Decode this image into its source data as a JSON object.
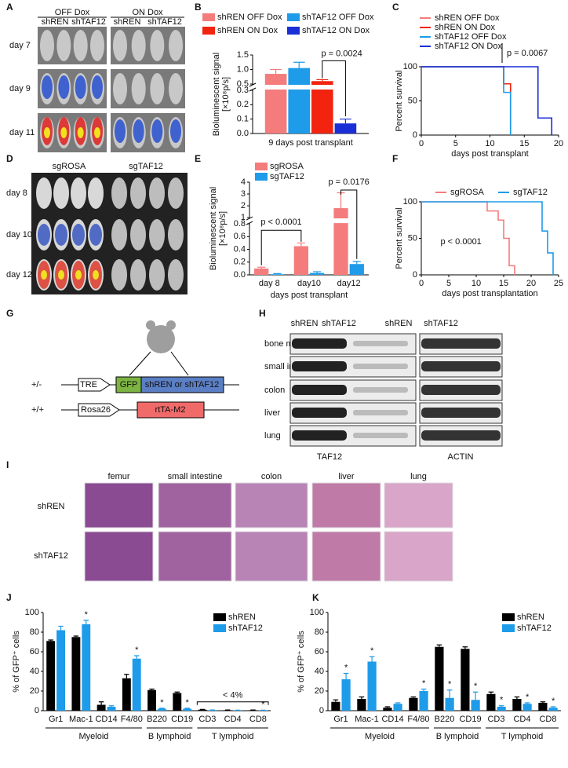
{
  "panel_labels": [
    "A",
    "B",
    "C",
    "D",
    "E",
    "F",
    "G",
    "H",
    "I",
    "J",
    "K"
  ],
  "panel_a": {
    "groups": [
      "OFF Dox",
      "ON Dox"
    ],
    "columns": [
      "shREN",
      "shTAF12",
      "shREN",
      "shTAF12"
    ],
    "rows": [
      "day 7",
      "day 9",
      "day 11"
    ]
  },
  "panel_d": {
    "columns": [
      "sgROSA",
      "sgTAF12"
    ],
    "rows": [
      "day 8",
      "day 10",
      "day 12"
    ]
  },
  "panel_g": {
    "rows": [
      {
        "genotype": "+/-",
        "promoter": "TRE",
        "reporter": "GFP",
        "cassette": "shREN or shTAF12"
      },
      {
        "genotype": "+/+",
        "promoter": "Rosa26",
        "cassette": "rtTA-M2"
      }
    ]
  },
  "panel_h": {
    "columns": [
      "shREN",
      "shTAF12",
      "shREN",
      "shTAF12"
    ],
    "rows": [
      "bone marrow",
      "small intestine",
      "colon",
      "liver",
      "lung"
    ],
    "blots": [
      "TAF12",
      "ACTIN"
    ]
  },
  "panel_i": {
    "columns": [
      "femur",
      "small intestine",
      "colon",
      "liver",
      "lung"
    ],
    "rows": [
      "shREN",
      "shTAF12"
    ]
  },
  "chart_data": [
    {
      "type": "bar",
      "ylabel": [
        "Bioluminescent signal",
        "[×10⁸p/s]"
      ],
      "xlabel": "9 days post transplant",
      "categories": [
        null
      ],
      "series": [
        {
          "name": "shREN OFF Dox",
          "color": "#f47c7c",
          "values": [
            0.85
          ],
          "errors": [
            0.15
          ]
        },
        {
          "name": "shTAF12 OFF Dox",
          "color": "#1e9be9",
          "values": [
            1.05
          ],
          "errors": [
            0.2
          ]
        },
        {
          "name": "shREN ON Dox",
          "color": "#f2230f",
          "values": [
            0.6
          ],
          "errors": [
            0.05
          ]
        },
        {
          "name": "shTAF12 ON Dox",
          "color": "#1b2fd6",
          "values": [
            0.07
          ],
          "errors": [
            0.03
          ]
        }
      ],
      "ylim": [
        0,
        1.5
      ],
      "ybreak": [
        0.3,
        0.5
      ],
      "yticks": [
        {
          "value": 0,
          "label": "0.0"
        },
        0.1,
        0.2,
        0.3,
        0.5,
        {
          "value": 1,
          "label": "1.0"
        },
        1.5
      ],
      "annotations": [
        "p = 0.0024"
      ],
      "legend": "top"
    },
    {
      "type": "line",
      "ylabel": [
        "Percent survival"
      ],
      "xlabel": "days post transplant",
      "xlim": [
        0,
        20
      ],
      "xticks": [
        0,
        5,
        10,
        15,
        20
      ],
      "ylim": [
        0,
        100
      ],
      "yticks": [
        0,
        50,
        100
      ],
      "series": [
        {
          "name": "shREN OFF Dox",
          "color": "#f47c7c",
          "x": [
            0,
            12,
            12,
            13,
            13
          ],
          "values": [
            100,
            100,
            75,
            75,
            0
          ]
        },
        {
          "name": "shREN ON Dox",
          "color": "#f2230f",
          "x": [
            0,
            12,
            12,
            13,
            13
          ],
          "values": [
            100,
            100,
            75,
            75,
            0
          ]
        },
        {
          "name": "shTAF12 OFF Dox",
          "color": "#1e9be9",
          "x": [
            0,
            12,
            12,
            13,
            13
          ],
          "values": [
            100,
            100,
            62.5,
            62.5,
            0
          ]
        },
        {
          "name": "shTAF12 ON Dox",
          "color": "#1b2fd6",
          "x": [
            0,
            17,
            17,
            19,
            19
          ],
          "values": [
            100,
            100,
            25,
            25,
            0
          ]
        }
      ],
      "annotations": [
        "p = 0.0067"
      ],
      "legend": "top"
    },
    {
      "type": "bar",
      "ylabel": [
        "Bioluminescent signal",
        "[×10⁸p/s]"
      ],
      "xlabel": "days post transplant",
      "categories": [
        "day 8",
        "day10",
        "day12"
      ],
      "series": [
        {
          "name": "sgROSA",
          "color": "#f47c7c",
          "values": [
            0.1,
            0.45,
            1.8
          ],
          "errors": [
            0.02,
            0.05,
            1.3
          ]
        },
        {
          "name": "sgTAF12",
          "color": "#1e9be9",
          "values": [
            0.01,
            0.03,
            0.17
          ],
          "errors": [
            0.01,
            0.02,
            0.04
          ]
        }
      ],
      "ylim": [
        0,
        4
      ],
      "ybreak": [
        0.8,
        1
      ],
      "yticks": [
        {
          "value": 0,
          "label": "0.0"
        },
        0.2,
        0.4,
        0.6,
        0.8,
        1,
        2,
        3,
        4
      ],
      "annotations": [
        "p < 0.0001",
        "p = 0.0176"
      ],
      "legend": "upper left"
    },
    {
      "type": "line",
      "ylabel": [
        "Percent survival"
      ],
      "xlabel": "days post transplantation",
      "xlim": [
        0,
        25
      ],
      "xticks": [
        0,
        5,
        10,
        15,
        20,
        25
      ],
      "ylim": [
        0,
        100
      ],
      "yticks": [
        0,
        50,
        100
      ],
      "series": [
        {
          "name": "sgROSA",
          "color": "#f47c7c",
          "x": [
            0,
            12,
            12,
            14,
            14,
            15,
            15,
            16,
            16,
            17,
            17
          ],
          "values": [
            100,
            100,
            87.5,
            87.5,
            75,
            75,
            50,
            50,
            12.5,
            12.5,
            0
          ]
        },
        {
          "name": "sgTAF12",
          "color": "#1e9be9",
          "x": [
            0,
            22,
            22,
            23,
            23,
            24,
            24
          ],
          "values": [
            100,
            100,
            60,
            60,
            30,
            30,
            0
          ]
        }
      ],
      "annotations": [
        "p < 0.0001"
      ],
      "legend": "top"
    },
    {
      "type": "bar",
      "ylabel": [
        "% of GFP⁺ cells"
      ],
      "categories": [
        "Gr1",
        "Mac-1",
        "CD14",
        "F4/80",
        "B220",
        "CD19",
        "CD3",
        "CD4",
        "CD8"
      ],
      "groups": [
        "Myeloid",
        "B lymphoid",
        "T lymphoid"
      ],
      "series": [
        {
          "name": "shREN",
          "color": "#000000",
          "values": [
            71,
            75,
            6,
            33,
            21,
            18,
            1,
            0.5,
            0.5
          ],
          "errors": [
            1,
            1,
            3,
            4,
            1,
            1,
            0.3,
            0.2,
            0.2
          ]
        },
        {
          "name": "shTAF12",
          "color": "#1e9be9",
          "values": [
            82,
            88,
            4,
            53,
            2,
            2,
            0.5,
            0.3,
            0.3
          ],
          "errors": [
            4,
            4,
            1,
            3,
            0.5,
            0.5,
            0.2,
            0.2,
            0.2
          ],
          "significant": [
            false,
            true,
            false,
            true,
            true,
            true,
            false,
            false,
            true
          ]
        }
      ],
      "significance_label": "*",
      "ylim": [
        0,
        100
      ],
      "yticks": [
        0,
        20,
        40,
        60,
        80,
        100
      ],
      "annotations": [
        "< 4%"
      ],
      "legend": "upper right"
    },
    {
      "type": "bar",
      "ylabel": [
        "% of GFP⁺ cells"
      ],
      "categories": [
        "Gr1",
        "Mac-1",
        "CD14",
        "F4/80",
        "B220",
        "CD19",
        "CD3",
        "CD4",
        "CD8"
      ],
      "groups": [
        "Myeloid",
        "B lymphoid",
        "T lymphoid"
      ],
      "series": [
        {
          "name": "shREN",
          "color": "#000000",
          "values": [
            9,
            12,
            3,
            13,
            65,
            63,
            17,
            12,
            8
          ],
          "errors": [
            2,
            2,
            1,
            1,
            2,
            2,
            2,
            2,
            1
          ]
        },
        {
          "name": "shTAF12",
          "color": "#1e9be9",
          "values": [
            32,
            50,
            7,
            20,
            13,
            11,
            4,
            7,
            3
          ],
          "errors": [
            6,
            5,
            1,
            2,
            8,
            8,
            1,
            1,
            1
          ],
          "significant": [
            true,
            true,
            false,
            true,
            true,
            true,
            true,
            true,
            true
          ]
        }
      ],
      "significance_label": "*",
      "ylim": [
        0,
        100
      ],
      "yticks": [
        0,
        20,
        40,
        60,
        80,
        100
      ],
      "legend": "upper right"
    }
  ]
}
